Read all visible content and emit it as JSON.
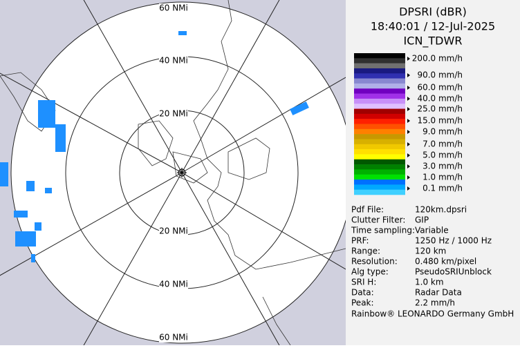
{
  "map": {
    "ring_labels": [
      "60 NMi",
      "40 NMi",
      "20 NMi",
      "20 NMi",
      "40 NMi",
      "60 NMi"
    ]
  },
  "panel": {
    "title": [
      "DPSRI (dBR)",
      "18:40:01 / 12-Jul-2025",
      "ICN_TDWR"
    ],
    "legend": [
      "200.0 mm/h",
      "90.0 mm/h",
      "60.0 mm/h",
      "40.0 mm/h",
      "25.0 mm/h",
      "15.0 mm/h",
      "9.0 mm/h",
      "7.0 mm/h",
      "5.0 mm/h",
      "3.0 mm/h",
      "1.0 mm/h",
      "0.1 mm/h"
    ],
    "info": [
      [
        "Pdf File:",
        "120km.dpsri"
      ],
      [
        "Clutter Filter:",
        "GIP"
      ],
      [
        "Time sampling:",
        "Variable"
      ],
      [
        "PRF:",
        "1250 Hz / 1000 Hz"
      ],
      [
        "Range:",
        "120 km"
      ],
      [
        "Resolution:",
        "0.480 km/pixel"
      ],
      [
        "Alg type:",
        "PseudoSRIUnblock"
      ],
      [
        "SRI H:",
        "1.0 km"
      ],
      [
        "Data:",
        "Radar Data"
      ],
      [
        "Peak:",
        "2.2 mm/h"
      ]
    ],
    "footer": "Rainbow® LEONARDO Germany GmbH"
  }
}
